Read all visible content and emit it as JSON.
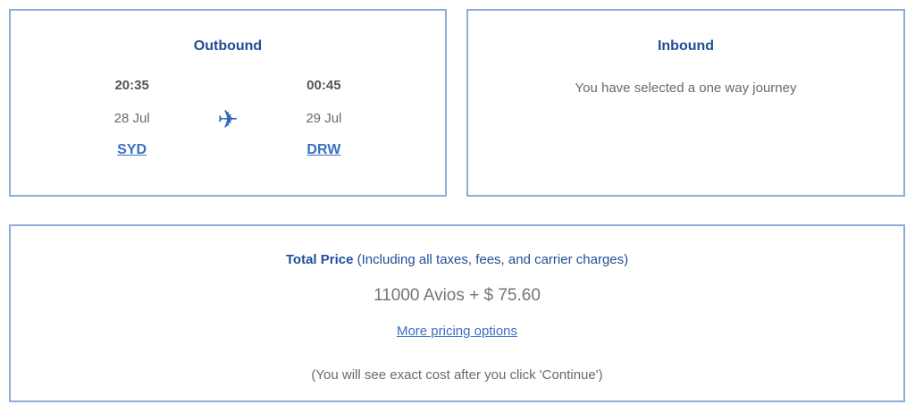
{
  "colors": {
    "heading_blue": "#1f4e96",
    "link_blue": "#3a70c2",
    "border_blue": "#8badd8",
    "plane_blue": "#3069b6",
    "time_gray": "#545454",
    "text_gray": "#6a6a6a"
  },
  "icons": {
    "plane": "✈"
  },
  "outbound": {
    "title": "Outbound",
    "departure": {
      "time": "20:35",
      "date": "28 Jul",
      "airport": "SYD"
    },
    "arrival": {
      "time": "00:45",
      "date": "29 Jul",
      "airport": "DRW"
    }
  },
  "inbound": {
    "title": "Inbound",
    "message": "You have selected a one way journey"
  },
  "total": {
    "title": "Total Price",
    "subtitle": "(Including all taxes, fees, and carrier charges)",
    "price": "11000 Avios + $ 75.60",
    "link": "More pricing options",
    "note": "(You will see exact cost after you click 'Continue')"
  }
}
